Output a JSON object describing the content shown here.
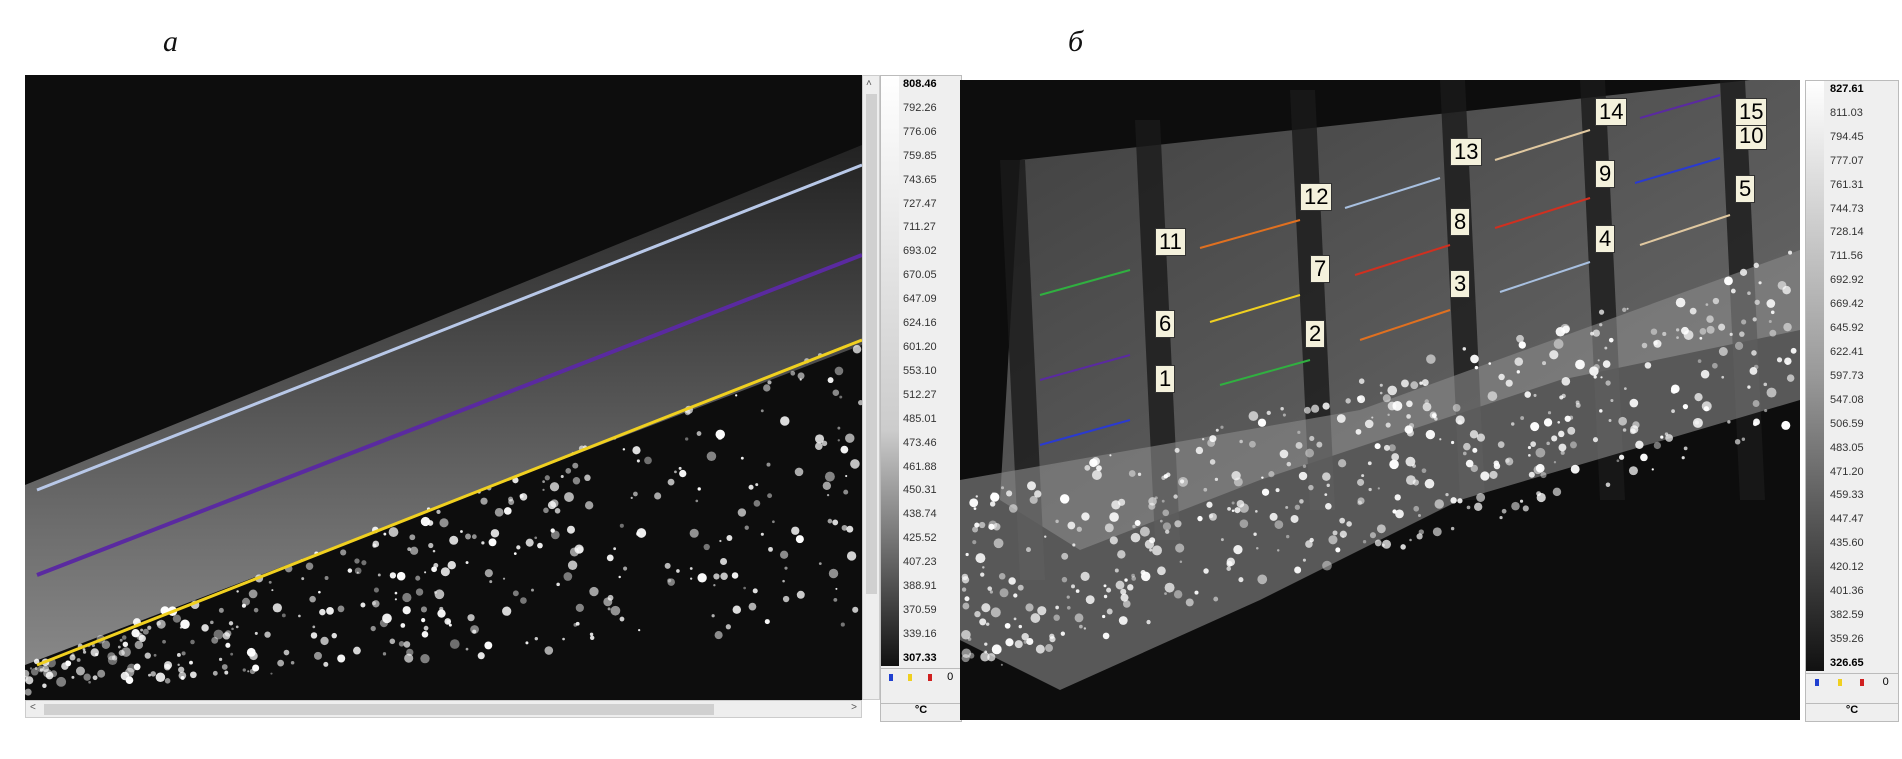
{
  "panels": [
    {
      "label": "а",
      "scale": {
        "ticks": [
          "808.46",
          "792.26",
          "776.06",
          "759.85",
          "743.65",
          "727.47",
          "711.27",
          "693.02",
          "670.05",
          "647.09",
          "624.16",
          "601.20",
          "553.10",
          "512.27",
          "485.01",
          "473.46",
          "461.88",
          "450.31",
          "438.74",
          "425.52",
          "407.23",
          "388.91",
          "370.59",
          "339.16",
          "307.33"
        ],
        "unit": "°C",
        "legend_zero": "0"
      },
      "lines": [
        "#b8c8e8",
        "#5a2aa0",
        "#f0d020"
      ]
    },
    {
      "label": "б",
      "scale": {
        "ticks": [
          "827.61",
          "811.03",
          "794.45",
          "777.07",
          "761.31",
          "744.73",
          "728.14",
          "711.56",
          "692.92",
          "669.42",
          "645.92",
          "622.41",
          "597.73",
          "547.08",
          "506.59",
          "483.05",
          "471.20",
          "459.33",
          "447.47",
          "435.60",
          "420.12",
          "401.36",
          "382.59",
          "359.26",
          "326.65"
        ],
        "unit": "°C",
        "legend_zero": "0"
      },
      "points": [
        "1",
        "2",
        "3",
        "4",
        "5",
        "6",
        "7",
        "8",
        "9",
        "10",
        "11",
        "12",
        "13",
        "14",
        "15"
      ]
    }
  ],
  "legend_colors": [
    "#2040d0",
    "#f0d020",
    "#d02020"
  ]
}
